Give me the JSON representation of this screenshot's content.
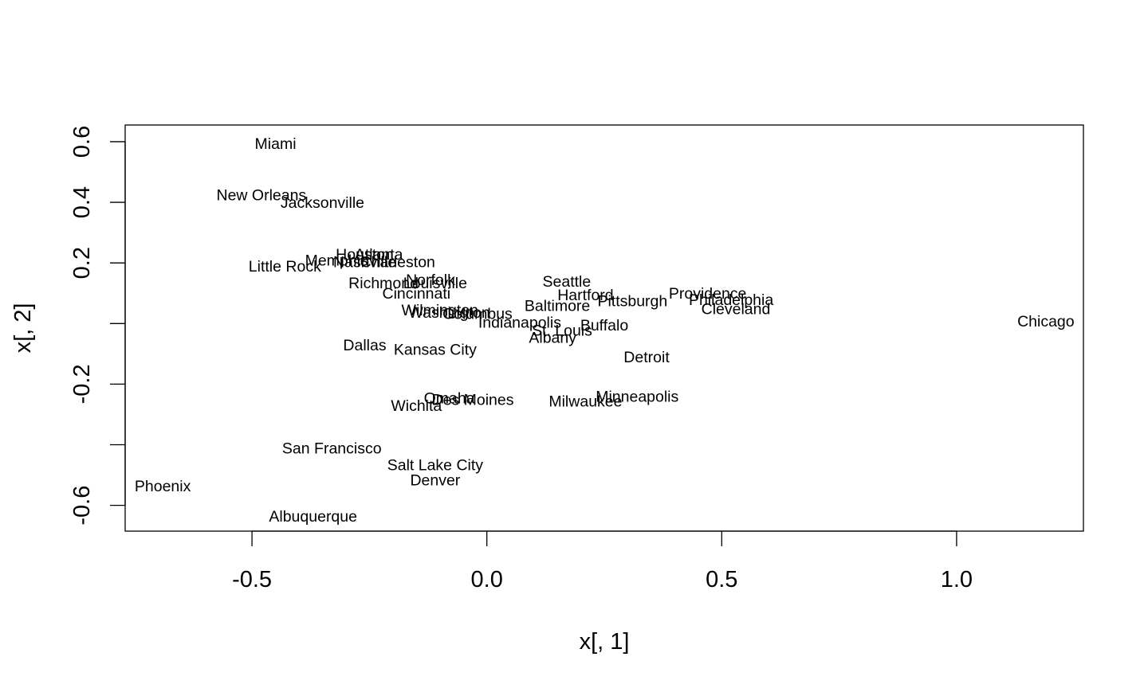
{
  "chart_data": {
    "type": "scatter",
    "title": "",
    "xlabel": "x[, 1]",
    "ylabel": "x[, 2]",
    "xlim": [
      -0.77,
      1.27
    ],
    "ylim": [
      -0.685,
      0.655
    ],
    "x_ticks": [
      -0.5,
      0.0,
      0.5,
      1.0
    ],
    "x_tick_labels": [
      "-0.5",
      "0.0",
      "0.5",
      "1.0"
    ],
    "y_ticks": [
      -0.6,
      -0.4,
      -0.2,
      0.0,
      0.2,
      0.4,
      0.6
    ],
    "y_tick_labels": [
      "-0.6",
      "",
      "-0.2",
      "",
      "0.2",
      "0.4",
      "0.6"
    ],
    "grid": false,
    "legend": "none",
    "points": [
      {
        "label": "Miami",
        "x": -0.45,
        "y": 0.595
      },
      {
        "label": "New Orleans",
        "x": -0.48,
        "y": 0.425
      },
      {
        "label": "Jacksonville",
        "x": -0.35,
        "y": 0.4
      },
      {
        "label": "Houston",
        "x": -0.26,
        "y": 0.23
      },
      {
        "label": "Atlanta",
        "x": -0.23,
        "y": 0.23
      },
      {
        "label": "Memphis",
        "x": -0.32,
        "y": 0.21
      },
      {
        "label": "Nashville",
        "x": -0.26,
        "y": 0.205
      },
      {
        "label": "Charleston",
        "x": -0.19,
        "y": 0.205
      },
      {
        "label": "Little Rock",
        "x": -0.43,
        "y": 0.19
      },
      {
        "label": "Richmond",
        "x": -0.22,
        "y": 0.135
      },
      {
        "label": "Norfolk",
        "x": -0.12,
        "y": 0.145
      },
      {
        "label": "Louisville",
        "x": -0.11,
        "y": 0.135
      },
      {
        "label": "Cincinnati",
        "x": -0.15,
        "y": 0.1
      },
      {
        "label": "Seattle",
        "x": 0.17,
        "y": 0.14
      },
      {
        "label": "Hartford",
        "x": 0.21,
        "y": 0.095
      },
      {
        "label": "Pittsburgh",
        "x": 0.31,
        "y": 0.075
      },
      {
        "label": "Providence",
        "x": 0.47,
        "y": 0.1
      },
      {
        "label": "Philadelphia",
        "x": 0.52,
        "y": 0.08
      },
      {
        "label": "Cleveland",
        "x": 0.53,
        "y": 0.05
      },
      {
        "label": "Baltimore",
        "x": 0.15,
        "y": 0.06
      },
      {
        "label": "Wilmington",
        "x": -0.1,
        "y": 0.045
      },
      {
        "label": "Washington",
        "x": -0.08,
        "y": 0.038
      },
      {
        "label": "Columbus",
        "x": -0.02,
        "y": 0.033
      },
      {
        "label": "Indianapolis",
        "x": 0.07,
        "y": 0.005
      },
      {
        "label": "Buffalo",
        "x": 0.25,
        "y": -0.005
      },
      {
        "label": "St. Louis",
        "x": 0.16,
        "y": -0.022
      },
      {
        "label": "Albany",
        "x": 0.14,
        "y": -0.045
      },
      {
        "label": "Chicago",
        "x": 1.19,
        "y": 0.008
      },
      {
        "label": "Dallas",
        "x": -0.26,
        "y": -0.07
      },
      {
        "label": "Kansas City",
        "x": -0.11,
        "y": -0.085
      },
      {
        "label": "Detroit",
        "x": 0.34,
        "y": -0.11
      },
      {
        "label": "Omaha",
        "x": -0.08,
        "y": -0.245
      },
      {
        "label": "Des Moines",
        "x": -0.03,
        "y": -0.25
      },
      {
        "label": "Wichita",
        "x": -0.15,
        "y": -0.27
      },
      {
        "label": "Milwaukee",
        "x": 0.21,
        "y": -0.255
      },
      {
        "label": "Minneapolis",
        "x": 0.32,
        "y": -0.24
      },
      {
        "label": "San Francisco",
        "x": -0.33,
        "y": -0.41
      },
      {
        "label": "Salt Lake City",
        "x": -0.11,
        "y": -0.465
      },
      {
        "label": "Denver",
        "x": -0.11,
        "y": -0.515
      },
      {
        "label": "Phoenix",
        "x": -0.69,
        "y": -0.535
      },
      {
        "label": "Albuquerque",
        "x": -0.37,
        "y": -0.635
      }
    ]
  }
}
